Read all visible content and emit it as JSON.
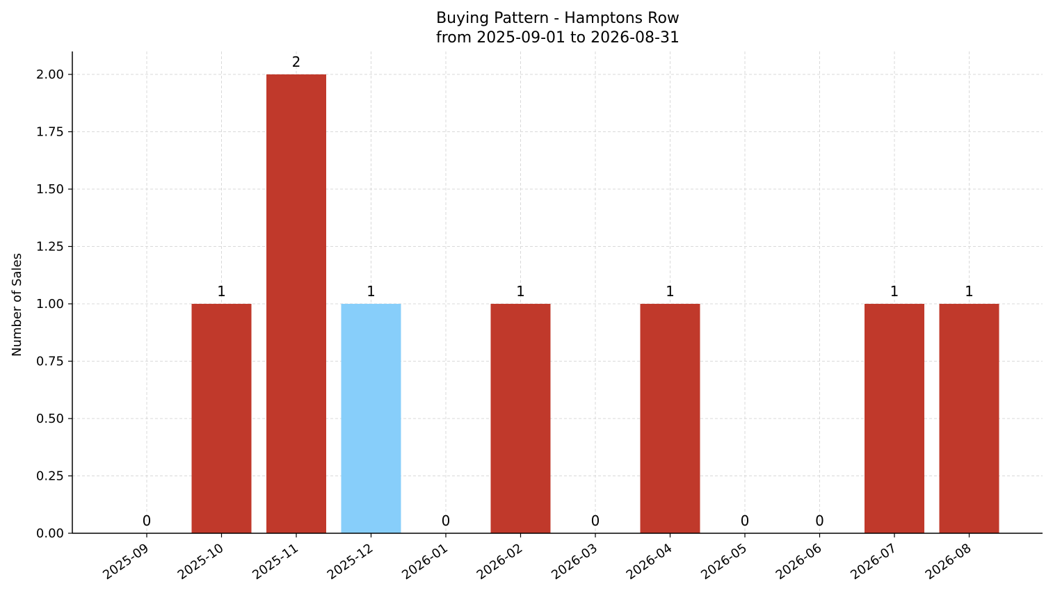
{
  "chart_data": {
    "type": "bar",
    "title": "Buying Pattern - Hamptons Row",
    "subtitle": "from 2025-09-01 to 2026-08-31",
    "xlabel": "",
    "ylabel": "Number of Sales",
    "categories": [
      "2025-09",
      "2025-10",
      "2025-11",
      "2025-12",
      "2026-01",
      "2026-02",
      "2026-03",
      "2026-04",
      "2026-05",
      "2026-06",
      "2026-07",
      "2026-08"
    ],
    "values": [
      0,
      1,
      2,
      1,
      0,
      1,
      0,
      1,
      0,
      0,
      1,
      1
    ],
    "data_labels": [
      "0",
      "1",
      "2",
      "1",
      "0",
      "1",
      "0",
      "1",
      "0",
      "0",
      "1",
      "1"
    ],
    "bar_colors": [
      "#c0392b",
      "#c0392b",
      "#c0392b",
      "#87cefa",
      "#c0392b",
      "#c0392b",
      "#c0392b",
      "#c0392b",
      "#c0392b",
      "#c0392b",
      "#c0392b",
      "#c0392b"
    ],
    "ylim": [
      0,
      2.1
    ],
    "yticks": [
      0.0,
      0.25,
      0.5,
      0.75,
      1.0,
      1.25,
      1.5,
      1.75,
      2.0
    ],
    "ytick_labels": [
      "0.00",
      "0.25",
      "0.50",
      "0.75",
      "1.00",
      "1.25",
      "1.50",
      "1.75",
      "2.00"
    ],
    "grid": true,
    "x_tick_rotation": 35
  }
}
